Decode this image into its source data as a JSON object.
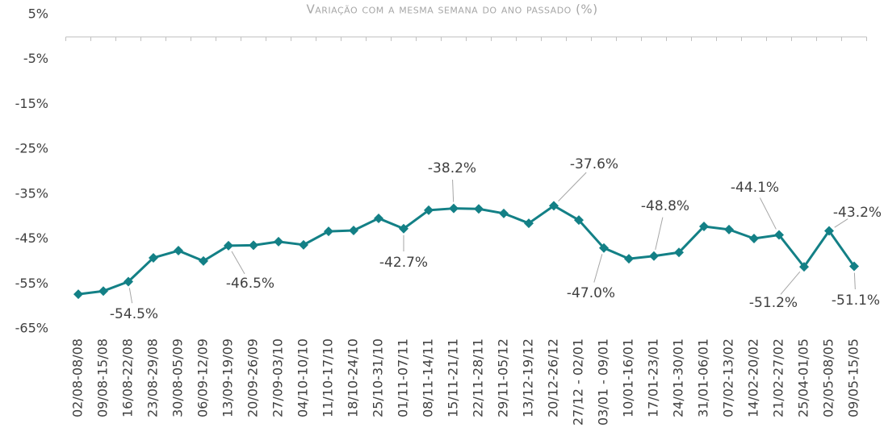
{
  "chart_data": {
    "type": "line",
    "title": "Variação com a mesma semana do ano passado (%)",
    "categories": [
      "02/08-08/08",
      "09/08-15/08",
      "16/08-22/08",
      "23/08-29/08",
      "30/08-05/09",
      "06/09-12/09",
      "13/09-19/09",
      "20/09-26/09",
      "27/09-03/10",
      "04/10-10/10",
      "11/10-17/10",
      "18/10-24/10",
      "25/10-31/10",
      "01/11-07/11",
      "08/11-14/11",
      "15/11-21/11",
      "22/11-28/11",
      "29/11-05/12",
      "13/12-19/12",
      "20/12-26/12",
      "27/12 - 02/01",
      "03/01 - 09/01",
      "10/01-16/01",
      "17/01-23/01",
      "24/01-30/01",
      "31/01-06/01",
      "07/02-13/02",
      "14/02-20/02",
      "21/02-27/02",
      "25/04-01/05",
      "02/05-08/05",
      "09/05-15/05"
    ],
    "series": [
      {
        "name": "Variação",
        "color": "#138086",
        "values": [
          -57.3,
          -56.6,
          -54.5,
          -49.2,
          -47.6,
          -49.9,
          -46.5,
          -46.4,
          -45.6,
          -46.3,
          -43.3,
          -43.1,
          -40.4,
          -42.7,
          -38.6,
          -38.2,
          -38.3,
          -39.3,
          -41.5,
          -37.6,
          -40.8,
          -47.0,
          -49.4,
          -48.8,
          -48.0,
          -42.2,
          -42.9,
          -44.9,
          -44.1,
          -51.2,
          -43.2,
          -51.1
        ],
        "value_labels": [
          null,
          null,
          "-54.5%",
          null,
          null,
          null,
          "-46.5%",
          null,
          null,
          null,
          null,
          null,
          null,
          "-42.7%",
          null,
          "-38.2%",
          null,
          null,
          null,
          "-37.6%",
          null,
          "-47.0%",
          null,
          "-48.8%",
          null,
          null,
          null,
          null,
          "-44.1%",
          "-51.2%",
          "-43.2%",
          "-51.1%"
        ]
      }
    ],
    "ylim": [
      -65,
      5
    ],
    "yticks": [
      {
        "value": -65,
        "label": "-65%"
      },
      {
        "value": -55,
        "label": "-55%"
      },
      {
        "value": -45,
        "label": "-45%"
      },
      {
        "value": -35,
        "label": "-35%"
      },
      {
        "value": -25,
        "label": "-25%"
      },
      {
        "value": -15,
        "label": "-15%"
      },
      {
        "value": -5,
        "label": "-5%"
      },
      {
        "value": 5,
        "label": "5%"
      }
    ]
  }
}
